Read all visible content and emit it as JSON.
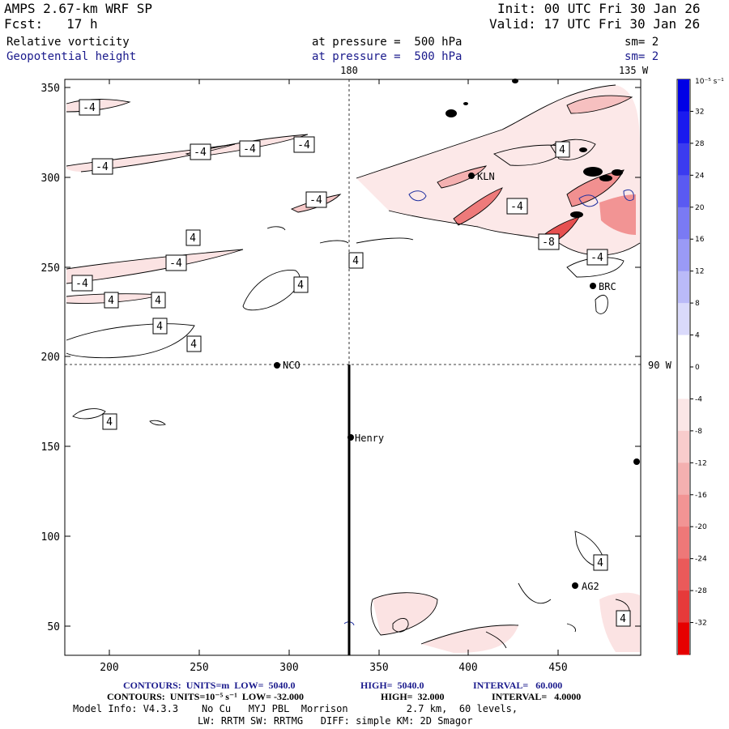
{
  "header": {
    "model": "AMPS 2.67-km WRF SP",
    "init": "Init: 00 UTC Fri 30 Jan 26",
    "fcst": "Fcst:   17 h",
    "valid": "Valid: 17 UTC Fri 30 Jan 26",
    "field1": "Relative vorticity",
    "field1_level": "at pressure =  500 hPa",
    "field1_sm": "sm= 2",
    "field2": "Geopotential height",
    "field2_level": "at pressure =  500 hPa",
    "field2_sm": "sm= 2"
  },
  "map": {
    "lon_label_180": "180",
    "lon_label_135w": "135 W",
    "lat_label_90w": "90 W",
    "x_ticks": [
      "200",
      "250",
      "300",
      "350",
      "400",
      "450"
    ],
    "y_ticks": [
      "350",
      "300",
      "250",
      "200",
      "150",
      "100",
      "50"
    ],
    "stations": [
      "NCO",
      "Henry",
      "KLN",
      "BRC",
      "AG2"
    ],
    "contour_labels": [
      "-4",
      "-4",
      "-4",
      "-4",
      "-4",
      "-4",
      "-4",
      "-4",
      "-4",
      "-4",
      "-8",
      "4",
      "4",
      "4",
      "4",
      "4",
      "4",
      "4",
      "4",
      "4",
      "4",
      "4"
    ]
  },
  "colorbar": {
    "unit": "10⁻⁵ s⁻¹",
    "ticks": [
      "32",
      "28",
      "24",
      "20",
      "16",
      "12",
      "8",
      "4",
      "0",
      "-4",
      "-8",
      "-12",
      "-16",
      "-20",
      "-24",
      "-28",
      "-32"
    ],
    "colors": [
      "#0000e6",
      "#1a1aef",
      "#3b3bf0",
      "#5a5af2",
      "#7a7af4",
      "#9a9af6",
      "#baba f8",
      "#dadafb",
      "#ffffff",
      "#fbe6e6",
      "#f8cccc",
      "#f4b0b0",
      "#f29494",
      "#ee7878",
      "#ea5a5a",
      "#e63a3a",
      "#e60000"
    ]
  },
  "footer": {
    "contours1_label": "CONTOURS:  UNITS=m  LOW=  5040.0",
    "contours1_high": "HIGH=  5040.0",
    "contours1_interval": "INTERVAL=   60.000",
    "contours2_label": "CONTOURS:  UNITS=10⁻⁵ s⁻¹  LOW= -32.000",
    "contours2_high": "HIGH=  32.000",
    "contours2_interval": "INTERVAL=   4.0000",
    "model_info": "Model Info: V4.3.3    No Cu   MYJ PBL  Morrison          2.7 km,  60 levels,",
    "physics": "LW: RRTM SW: RRTMG   DIFF: simple KM: 2D Smagor"
  }
}
